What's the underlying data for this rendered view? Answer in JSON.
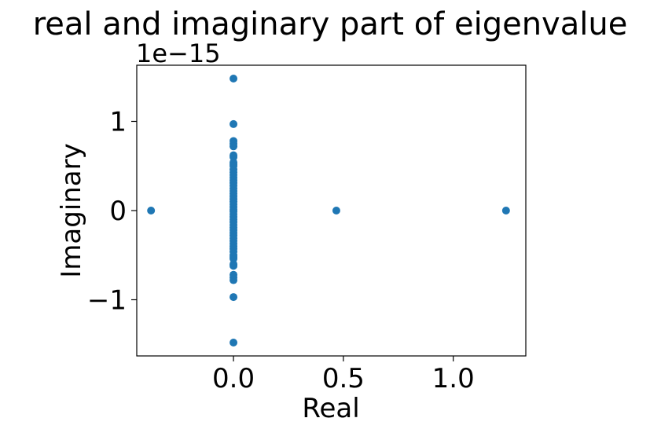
{
  "chart_data": {
    "type": "scatter",
    "title": "real and imaginary part of eigenvalue",
    "xlabel": "Real",
    "ylabel": "Imaginary",
    "y_offset_text": "1e−15",
    "xlim": [
      -0.44,
      1.33
    ],
    "ylim": [
      -1.63,
      1.63
    ],
    "x_ticks": [
      {
        "value": 0.0,
        "label": "0.0"
      },
      {
        "value": 0.5,
        "label": "0.5"
      },
      {
        "value": 1.0,
        "label": "1.0"
      }
    ],
    "y_ticks": [
      {
        "value": -1,
        "label": "−1"
      },
      {
        "value": 0,
        "label": "0"
      },
      {
        "value": 1,
        "label": "1"
      }
    ],
    "grid": false,
    "marker_color": "#1f77b4",
    "series": [
      {
        "points": [
          {
            "x": -0.375,
            "y": 0
          },
          {
            "x": 0.468,
            "y": 0
          },
          {
            "x": 1.24,
            "y": 0
          },
          {
            "x": 0,
            "y": 1.48
          },
          {
            "x": 0,
            "y": -1.48
          },
          {
            "x": 0,
            "y": 0.97
          },
          {
            "x": 0,
            "y": -0.97
          },
          {
            "x": 0,
            "y": 0.78
          },
          {
            "x": 0,
            "y": -0.78
          },
          {
            "x": 0,
            "y": 0.75
          },
          {
            "x": 0,
            "y": -0.75
          },
          {
            "x": 0,
            "y": 0.72
          },
          {
            "x": 0,
            "y": -0.72
          },
          {
            "x": 0,
            "y": 0.62
          },
          {
            "x": 0,
            "y": -0.62
          },
          {
            "x": 0,
            "y": 0.6
          },
          {
            "x": 0,
            "y": -0.6
          },
          {
            "x": 0,
            "y": 0.54
          },
          {
            "x": 0,
            "y": -0.54
          },
          {
            "x": 0,
            "y": 0.52
          },
          {
            "x": 0,
            "y": -0.52
          },
          {
            "x": 0,
            "y": 0.5
          },
          {
            "x": 0,
            "y": -0.5
          },
          {
            "x": 0,
            "y": 0.46
          },
          {
            "x": 0,
            "y": -0.46
          },
          {
            "x": 0,
            "y": 0.43
          },
          {
            "x": 0,
            "y": -0.43
          },
          {
            "x": 0,
            "y": 0.4
          },
          {
            "x": 0,
            "y": -0.4
          },
          {
            "x": 0,
            "y": 0.37
          },
          {
            "x": 0,
            "y": -0.37
          },
          {
            "x": 0,
            "y": 0.34
          },
          {
            "x": 0,
            "y": -0.34
          },
          {
            "x": 0,
            "y": 0.31
          },
          {
            "x": 0,
            "y": -0.31
          },
          {
            "x": 0,
            "y": 0.28
          },
          {
            "x": 0,
            "y": -0.28
          },
          {
            "x": 0,
            "y": 0.25
          },
          {
            "x": 0,
            "y": -0.25
          },
          {
            "x": 0,
            "y": 0.22
          },
          {
            "x": 0,
            "y": -0.22
          },
          {
            "x": 0,
            "y": 0.19
          },
          {
            "x": 0,
            "y": -0.19
          },
          {
            "x": 0,
            "y": 0.16
          },
          {
            "x": 0,
            "y": -0.16
          },
          {
            "x": 0,
            "y": 0.13
          },
          {
            "x": 0,
            "y": -0.13
          },
          {
            "x": 0,
            "y": 0.1
          },
          {
            "x": 0,
            "y": -0.1
          },
          {
            "x": 0,
            "y": 0.07
          },
          {
            "x": 0,
            "y": -0.07
          },
          {
            "x": 0,
            "y": 0.04
          },
          {
            "x": 0,
            "y": -0.04
          },
          {
            "x": 0,
            "y": 0.01
          },
          {
            "x": 0,
            "y": -0.01
          }
        ]
      }
    ]
  }
}
